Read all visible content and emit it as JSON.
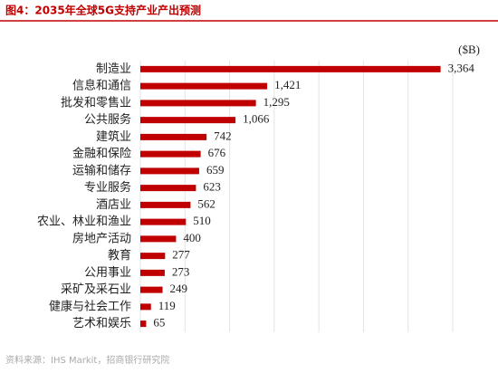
{
  "chart_data": {
    "type": "hbar",
    "title": "图4：2035年全球5G支持产业产出预测",
    "unit": "($B)",
    "source": "资料来源：IHS Markit，招商银行研究院",
    "categories": [
      "制造业",
      "信息和通信",
      "批发和零售业",
      "公共服务",
      "建筑业",
      "金融和保险",
      "运输和储存",
      "专业服务",
      "酒店业",
      "农业、林业和渔业",
      "房地产活动",
      "教育",
      "公用事业",
      "采矿及采石业",
      "健康与社会工作",
      "艺术和娱乐"
    ],
    "values": [
      3364,
      1421,
      1295,
      1066,
      742,
      676,
      659,
      623,
      562,
      510,
      400,
      277,
      273,
      249,
      119,
      65
    ],
    "value_labels": [
      "3,364",
      "1,421",
      "1,295",
      "1,066",
      "742",
      "676",
      "659",
      "623",
      "562",
      "510",
      "400",
      "277",
      "273",
      "249",
      "119",
      "65"
    ],
    "color": "#c00000",
    "xlim": [
      0,
      3500
    ],
    "xticks": [
      0,
      500,
      1000,
      1500,
      2000,
      2500,
      3000,
      3500
    ],
    "grid": true,
    "tick_labels": false
  }
}
